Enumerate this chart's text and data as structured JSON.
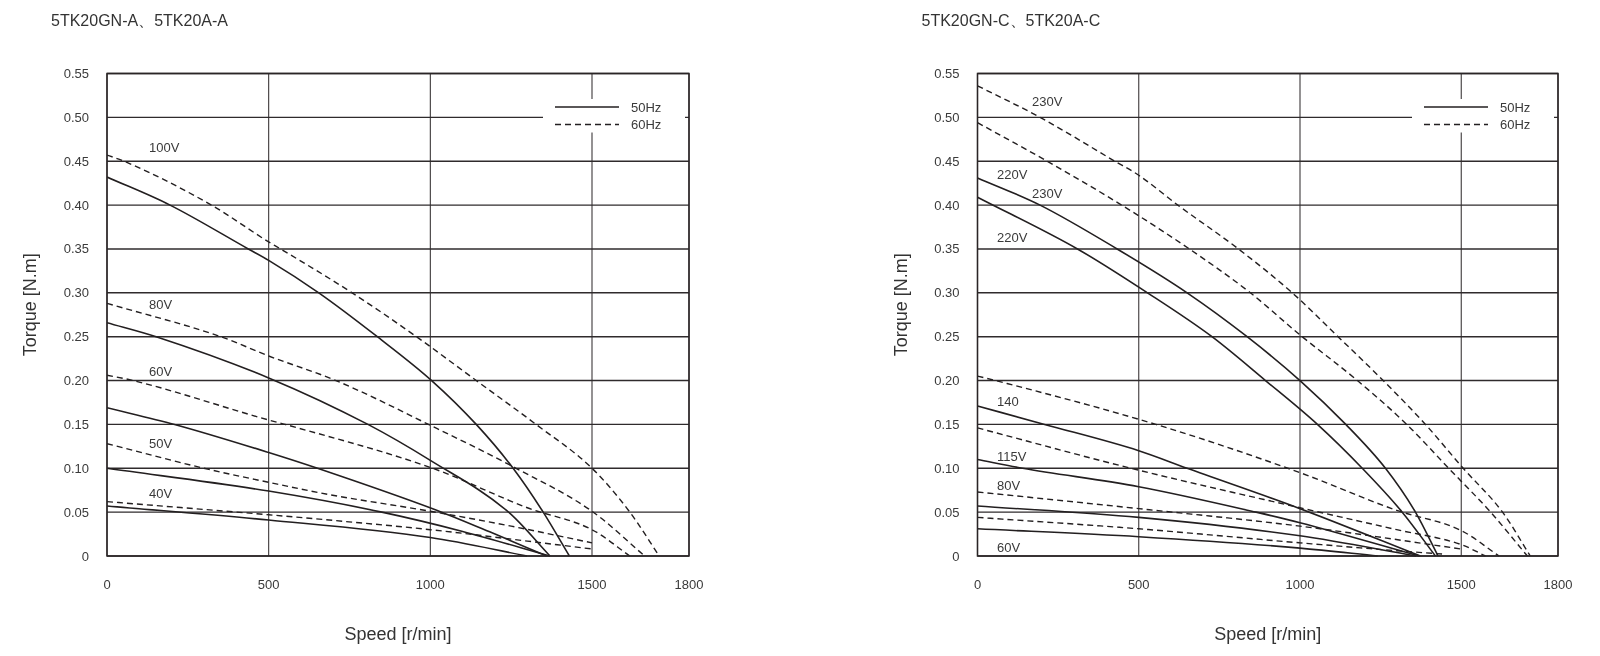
{
  "chart_data": [
    {
      "type": "line",
      "title": "5TK20GN-A、5TK20A-A",
      "xlabel": "Speed [r/min]",
      "ylabel": "Torque [N.m]",
      "xlim": [
        0,
        1800
      ],
      "xticks": [
        0,
        500,
        1000,
        1500,
        1800
      ],
      "ylim": [
        0,
        0.55
      ],
      "yticks": [
        0,
        0.05,
        {
          "value": 0.1,
          "label": "0.10"
        },
        0.15,
        {
          "value": 0.2,
          "label": "0.20"
        },
        0.25,
        {
          "value": 0.3,
          "label": "0.30"
        },
        0.35,
        {
          "value": 0.4,
          "label": "0.40"
        },
        0.45,
        {
          "value": 0.5,
          "label": "0.50"
        },
        0.55
      ],
      "grid": true,
      "legend": "top right",
      "marker": "none",
      "series": [
        {
          "name": "50Hz",
          "color": "#231f20",
          "line_style": "solid",
          "x": [
            0,
            195,
            437,
            500,
            655,
            836,
            1004,
            1142,
            1256,
            1349,
            1430
          ],
          "values": [
            0.432,
            0.4,
            0.35,
            0.337,
            0.3,
            0.25,
            0.2,
            0.15,
            0.1,
            0.05,
            0
          ]
        },
        {
          "name": "60Hz",
          "color": "#231f20",
          "line_style": "dashed",
          "x": [
            0,
            53,
            323,
            500,
            537,
            758,
            957,
            1142,
            1327,
            1500,
            1617,
            1708
          ],
          "values": [
            0.457,
            0.45,
            0.4,
            0.358,
            0.35,
            0.3,
            0.25,
            0.2,
            0.15,
            0.1,
            0.05,
            0
          ]
        },
        {
          "color": "#231f20",
          "line_style": "solid",
          "x": [
            0,
            152,
            500,
            807,
            1000,
            1242,
            1370
          ],
          "values": [
            0.266,
            0.25,
            0.203,
            0.15,
            0.109,
            0.05,
            0
          ]
        },
        {
          "color": "#231f20",
          "line_style": "dashed",
          "x": [
            0,
            352,
            500,
            708,
            1000,
            1265,
            1500,
            1663
          ],
          "values": [
            0.288,
            0.25,
            0.228,
            0.2,
            0.149,
            0.1,
            0.051,
            0
          ]
        },
        {
          "color": "#231f20",
          "line_style": "solid",
          "x": [
            0,
            209,
            500,
            651,
            1035,
            1200,
            1360
          ],
          "values": [
            0.169,
            0.15,
            0.118,
            0.1,
            0.05,
            0.025,
            0
          ]
        },
        {
          "color": "#231f20",
          "line_style": "dashed",
          "x": [
            0,
            81,
            500,
            551,
            1007,
            1300,
            1500,
            1617
          ],
          "values": [
            0.206,
            0.2,
            0.155,
            0.15,
            0.1,
            0.055,
            0.03,
            0
          ]
        },
        {
          "color": "#231f20",
          "line_style": "solid",
          "x": [
            0,
            500,
            850,
            1100,
            1370
          ],
          "values": [
            0.1,
            0.074,
            0.05,
            0.028,
            0
          ]
        },
        {
          "color": "#231f20",
          "line_style": "dashed",
          "x": [
            0,
            300,
            500,
            687,
            1000,
            1250,
            1500
          ],
          "values": [
            0.128,
            0.1,
            0.084,
            0.07,
            0.051,
            0.034,
            0.015
          ]
        },
        {
          "color": "#231f20",
          "line_style": "solid",
          "x": [
            0,
            500,
            1000,
            1299
          ],
          "values": [
            0.057,
            0.041,
            0.021,
            0
          ]
        },
        {
          "color": "#231f20",
          "line_style": "dashed",
          "x": [
            0,
            500,
            687,
            1000,
            1300,
            1500
          ],
          "values": [
            0.062,
            0.047,
            0.041,
            0.03,
            0.017,
            0.008
          ]
        }
      ],
      "annotations": [
        "100V",
        "80V",
        "60V",
        "50V",
        "40V"
      ]
    },
    {
      "type": "line",
      "title": "5TK20GN-C、5TK20A-C",
      "xlabel": "Speed [r/min]",
      "ylabel": "Torque [N.m]",
      "xlim": [
        0,
        1800
      ],
      "xticks": [
        0,
        500,
        1000,
        1500,
        1800
      ],
      "ylim": [
        0,
        0.55
      ],
      "yticks": [
        0,
        0.05,
        {
          "value": 0.1,
          "label": "0.10"
        },
        0.15,
        {
          "value": 0.2,
          "label": "0.20"
        },
        0.25,
        {
          "value": 0.3,
          "label": "0.30"
        },
        0.35,
        {
          "value": 0.4,
          "label": "0.40"
        },
        0.45,
        {
          "value": 0.5,
          "label": "0.50"
        },
        0.55
      ],
      "grid": true,
      "legend": "top right",
      "marker": "none",
      "series": [
        {
          "name": "50Hz",
          "color": "#231f20",
          "line_style": "solid",
          "x": [
            0,
            194,
            433,
            650,
            836,
            1000,
            1142,
            1265,
            1358,
            1428
          ],
          "values": [
            0.431,
            0.4,
            0.35,
            0.3,
            0.25,
            0.2,
            0.15,
            0.1,
            0.05,
            0
          ]
        },
        {
          "name": "60Hz",
          "color": "#231f20",
          "line_style": "dashed",
          "x": [
            0,
            194,
            426,
            500,
            621,
            809,
            976,
            1118,
            1258,
            1389,
            1506,
            1628,
            1714
          ],
          "values": [
            0.536,
            0.5,
            0.45,
            0.434,
            0.4,
            0.35,
            0.3,
            0.25,
            0.2,
            0.15,
            0.1,
            0.05,
            0
          ]
        },
        {
          "color": "#231f20",
          "line_style": "dashed",
          "x": [
            0,
            216,
            447,
            657,
            846,
            1000,
            1178,
            1331,
            1461,
            1591,
            1705
          ],
          "values": [
            0.494,
            0.45,
            0.4,
            0.35,
            0.3,
            0.252,
            0.2,
            0.15,
            0.1,
            0.05,
            0
          ]
        },
        {
          "color": "#231f20",
          "line_style": "solid",
          "x": [
            0,
            310,
            527,
            727,
            893,
            1054,
            1193,
            1317,
            1420
          ],
          "values": [
            0.409,
            0.35,
            0.3,
            0.25,
            0.2,
            0.15,
            0.1,
            0.05,
            0
          ]
        },
        {
          "color": "#231f20",
          "line_style": "dashed",
          "x": [
            0,
            56,
            553,
            1000,
            1300,
            1500,
            1617
          ],
          "values": [
            0.205,
            0.2,
            0.15,
            0.095,
            0.052,
            0.029,
            0
          ]
        },
        {
          "color": "#231f20",
          "line_style": "solid",
          "x": [
            0,
            208,
            500,
            650,
            1000,
            1373
          ],
          "values": [
            0.171,
            0.15,
            0.12,
            0.1,
            0.054,
            0
          ]
        },
        {
          "color": "#231f20",
          "line_style": "dashed",
          "x": [
            0,
            476,
            1000,
            1300,
            1500,
            1575
          ],
          "values": [
            0.146,
            0.1,
            0.055,
            0.03,
            0.013,
            0
          ]
        },
        {
          "color": "#231f20",
          "line_style": "solid",
          "x": [
            0,
            140,
            500,
            864,
            1000,
            1370
          ],
          "values": [
            0.11,
            0.1,
            0.079,
            0.05,
            0.038,
            0
          ]
        },
        {
          "color": "#231f20",
          "line_style": "dashed",
          "x": [
            0,
            500,
            1000,
            1500
          ],
          "values": [
            0.073,
            0.054,
            0.034,
            0.008
          ]
        },
        {
          "color": "#231f20",
          "line_style": "solid",
          "x": [
            0,
            500,
            1000,
            1360
          ],
          "values": [
            0.057,
            0.044,
            0.023,
            0
          ]
        },
        {
          "color": "#231f20",
          "line_style": "dashed",
          "x": [
            0,
            500,
            1000,
            1300,
            1450
          ],
          "values": [
            0.044,
            0.031,
            0.015,
            0.006,
            0.002
          ]
        },
        {
          "color": "#231f20",
          "line_style": "solid",
          "x": [
            0,
            500,
            1000,
            1241
          ],
          "values": [
            0.031,
            0.022,
            0.009,
            0
          ]
        }
      ],
      "annotations": [
        "230V",
        "220V",
        "230V",
        "220V",
        "140",
        "115V",
        "80V",
        "60V"
      ]
    }
  ]
}
